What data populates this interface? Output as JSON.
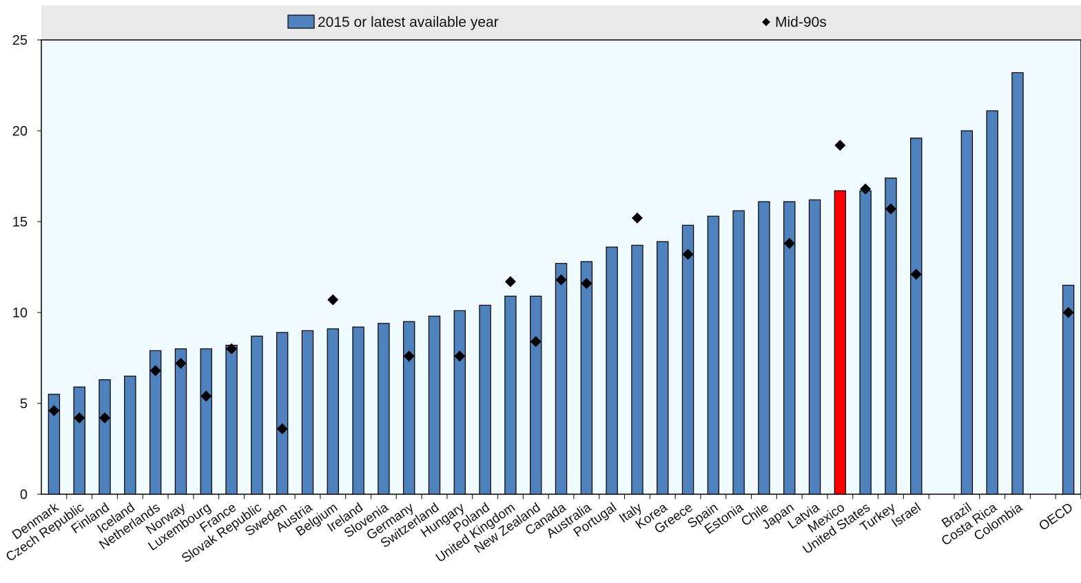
{
  "chart_data": {
    "type": "bar",
    "ylim": [
      0,
      25
    ],
    "yticks": [
      0,
      5,
      10,
      15,
      20,
      25
    ],
    "legend_position": "top",
    "categories": [
      "Denmark",
      "Czech Republic",
      "Finland",
      "Iceland",
      "Netherlands",
      "Norway",
      "Luxembourg",
      "France",
      "Slovak Republic",
      "Sweden",
      "Austria",
      "Belgium",
      "Ireland",
      "Slovenia",
      "Germany",
      "Switzerland",
      "Hungary",
      "Poland",
      "United Kingdom",
      "New Zealand",
      "Canada",
      "Australia",
      "Portugal",
      "Italy",
      "Korea",
      "Greece",
      "Spain",
      "Estonia",
      "Chile",
      "Japan",
      "Latvia",
      "Mexico",
      "United States",
      "Turkey",
      "Israel",
      "",
      "Brazil",
      "Costa Rica",
      "Colombia",
      "",
      "OECD"
    ],
    "series": [
      {
        "name": "2015 or latest available year",
        "mark": "bar",
        "color": "#4f81bd",
        "values": [
          5.5,
          5.9,
          6.3,
          6.5,
          7.9,
          8.0,
          8.0,
          8.2,
          8.7,
          8.9,
          9.0,
          9.1,
          9.2,
          9.4,
          9.5,
          9.8,
          10.1,
          10.4,
          10.9,
          10.9,
          12.7,
          12.8,
          13.6,
          13.7,
          13.9,
          14.8,
          15.3,
          15.6,
          16.1,
          16.1,
          16.2,
          16.7,
          16.7,
          17.4,
          19.6,
          null,
          20.0,
          21.1,
          23.2,
          null,
          11.5
        ]
      },
      {
        "name": "Mid-90s",
        "mark": "diamond",
        "color": "#000000",
        "values": [
          4.6,
          4.2,
          4.2,
          null,
          6.8,
          7.2,
          5.4,
          8.0,
          null,
          3.6,
          null,
          10.7,
          null,
          null,
          7.6,
          null,
          7.6,
          null,
          11.7,
          8.4,
          11.8,
          11.6,
          null,
          15.2,
          null,
          13.2,
          null,
          null,
          null,
          13.8,
          null,
          19.2,
          16.8,
          15.7,
          12.1,
          null,
          null,
          null,
          null,
          null,
          10.0
        ]
      }
    ],
    "highlight": {
      "category": "Mexico",
      "color": "#ff0000"
    },
    "plot_background": "#f0fbff",
    "legend_background": "#e9e9e9"
  }
}
